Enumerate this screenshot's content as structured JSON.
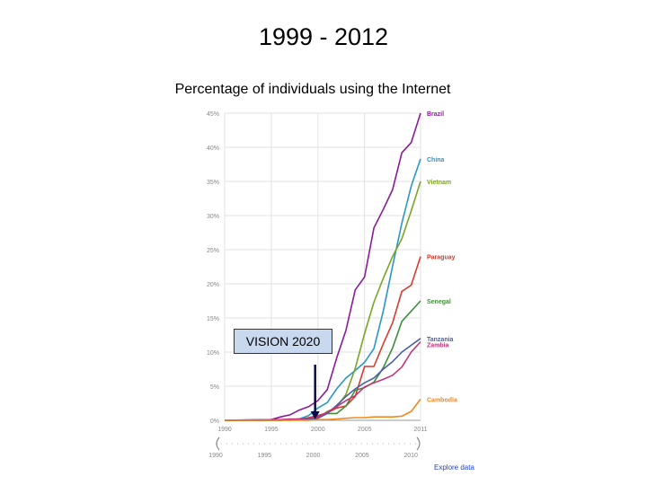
{
  "slide_title": "1999 - 2012",
  "annotation": {
    "label": "VISION 2020"
  },
  "explore_link": "Explore data",
  "chart_data": {
    "type": "line",
    "title": "Percentage of individuals using the Internet",
    "xlabel": "",
    "ylabel": "",
    "xlim": [
      1990,
      2011
    ],
    "ylim": [
      0,
      45
    ],
    "grid": true,
    "y_ticks": [
      0,
      5,
      10,
      15,
      20,
      25,
      30,
      35,
      40,
      45
    ],
    "y_tick_labels": [
      "0%",
      "5%",
      "10%",
      "15%",
      "20%",
      "25%",
      "30%",
      "35%",
      "40%",
      "45%"
    ],
    "x_ticks": [
      1990,
      1995,
      2000,
      2005,
      2011
    ],
    "x_tick_labels": [
      "1990",
      "1995",
      "2000",
      "2005",
      "2011"
    ],
    "timeline_labels": [
      "1990",
      "1995",
      "2000",
      "2005",
      "2010"
    ],
    "series": [
      {
        "name": "Brazil",
        "color": "#8b1a9b",
        "label_y": 45,
        "points": [
          [
            1990,
            0
          ],
          [
            1995,
            0.1
          ],
          [
            1996,
            0.5
          ],
          [
            1997,
            0.8
          ],
          [
            1998,
            1.5
          ],
          [
            1999,
            2
          ],
          [
            2000,
            2.9
          ],
          [
            2001,
            4.5
          ],
          [
            2002,
            9.1
          ],
          [
            2003,
            13.2
          ],
          [
            2004,
            19.1
          ],
          [
            2005,
            21
          ],
          [
            2006,
            28.2
          ],
          [
            2007,
            30.9
          ],
          [
            2008,
            33.8
          ],
          [
            2009,
            39.2
          ],
          [
            2010,
            40.7
          ],
          [
            2011,
            45
          ]
        ]
      },
      {
        "name": "China",
        "color": "#2a96c8",
        "label_y": 38.3,
        "points": [
          [
            1990,
            0
          ],
          [
            1997,
            0.1
          ],
          [
            1998,
            0.2
          ],
          [
            1999,
            0.7
          ],
          [
            2000,
            1.8
          ],
          [
            2001,
            2.6
          ],
          [
            2002,
            4.6
          ],
          [
            2003,
            6.2
          ],
          [
            2004,
            7.3
          ],
          [
            2005,
            8.5
          ],
          [
            2006,
            10.5
          ],
          [
            2007,
            16
          ],
          [
            2008,
            22.6
          ],
          [
            2009,
            28.9
          ],
          [
            2010,
            34.3
          ],
          [
            2011,
            38.3
          ]
        ]
      },
      {
        "name": "Vietnam",
        "color": "#7ba326",
        "label_y": 35,
        "points": [
          [
            1990,
            0
          ],
          [
            1997,
            0
          ],
          [
            1998,
            0.1
          ],
          [
            1999,
            0.2
          ],
          [
            2000,
            0.3
          ],
          [
            2001,
            1.3
          ],
          [
            2002,
            1.9
          ],
          [
            2003,
            3.8
          ],
          [
            2004,
            7.6
          ],
          [
            2005,
            12.7
          ],
          [
            2006,
            17.3
          ],
          [
            2007,
            20.8
          ],
          [
            2008,
            24
          ],
          [
            2009,
            26.6
          ],
          [
            2010,
            30.7
          ],
          [
            2011,
            35
          ]
        ]
      },
      {
        "name": "Paraguay",
        "color": "#d63b2b",
        "label_y": 24,
        "points": [
          [
            1990,
            0
          ],
          [
            1998,
            0.1
          ],
          [
            1999,
            0.4
          ],
          [
            2000,
            0.7
          ],
          [
            2001,
            1.1
          ],
          [
            2002,
            1.8
          ],
          [
            2003,
            2.1
          ],
          [
            2004,
            3.5
          ],
          [
            2005,
            7.9
          ],
          [
            2006,
            7.9
          ],
          [
            2007,
            11.2
          ],
          [
            2008,
            14.3
          ],
          [
            2009,
            18.9
          ],
          [
            2010,
            19.8
          ],
          [
            2011,
            24
          ]
        ]
      },
      {
        "name": "Senegal",
        "color": "#3f8f3a",
        "label_y": 17.5,
        "points": [
          [
            1990,
            0
          ],
          [
            1996,
            0
          ],
          [
            1997,
            0.1
          ],
          [
            1998,
            0.2
          ],
          [
            1999,
            0.3
          ],
          [
            2000,
            0.4
          ],
          [
            2001,
            1
          ],
          [
            2002,
            1
          ],
          [
            2003,
            2.1
          ],
          [
            2004,
            4.4
          ],
          [
            2005,
            4.8
          ],
          [
            2006,
            5.6
          ],
          [
            2007,
            7.7
          ],
          [
            2008,
            10.6
          ],
          [
            2009,
            14.5
          ],
          [
            2010,
            16
          ],
          [
            2011,
            17.5
          ]
        ]
      },
      {
        "name": "Tanzania",
        "color": "#4a5fa8",
        "label_y": 12,
        "points": [
          [
            1990,
            0
          ],
          [
            1996,
            0
          ],
          [
            1997,
            0.1
          ],
          [
            1998,
            0.1
          ],
          [
            1999,
            0.2
          ],
          [
            2000,
            0.3
          ],
          [
            2001,
            1
          ],
          [
            2002,
            2.2
          ],
          [
            2003,
            3.5
          ],
          [
            2004,
            4.6
          ],
          [
            2005,
            5.5
          ],
          [
            2006,
            6.2
          ],
          [
            2007,
            7.5
          ],
          [
            2008,
            8.6
          ],
          [
            2009,
            10
          ],
          [
            2010,
            11
          ],
          [
            2011,
            12
          ]
        ]
      },
      {
        "name": "Zambia",
        "color": "#c2347a",
        "label_y": 11.1,
        "points": [
          [
            1990,
            0
          ],
          [
            1994,
            0
          ],
          [
            1995,
            0.1
          ],
          [
            1996,
            0.1
          ],
          [
            1997,
            0.2
          ],
          [
            1998,
            0.2
          ],
          [
            1999,
            0.3
          ],
          [
            2000,
            0.5
          ],
          [
            2001,
            1.2
          ],
          [
            2002,
            2
          ],
          [
            2003,
            2.9
          ],
          [
            2004,
            3.6
          ],
          [
            2005,
            4.9
          ],
          [
            2006,
            5.5
          ],
          [
            2007,
            6
          ],
          [
            2008,
            6.6
          ],
          [
            2009,
            7.8
          ],
          [
            2010,
            10
          ],
          [
            2011,
            11.5
          ]
        ]
      },
      {
        "name": "Cambodia",
        "color": "#f08a1c",
        "label_y": 3.1,
        "points": [
          [
            1990,
            0
          ],
          [
            1999,
            0
          ],
          [
            2000,
            0.1
          ],
          [
            2001,
            0.1
          ],
          [
            2002,
            0.2
          ],
          [
            2003,
            0.3
          ],
          [
            2004,
            0.4
          ],
          [
            2005,
            0.4
          ],
          [
            2006,
            0.5
          ],
          [
            2007,
            0.5
          ],
          [
            2008,
            0.5
          ],
          [
            2009,
            0.6
          ],
          [
            2010,
            1.3
          ],
          [
            2011,
            3.1
          ]
        ]
      }
    ]
  }
}
